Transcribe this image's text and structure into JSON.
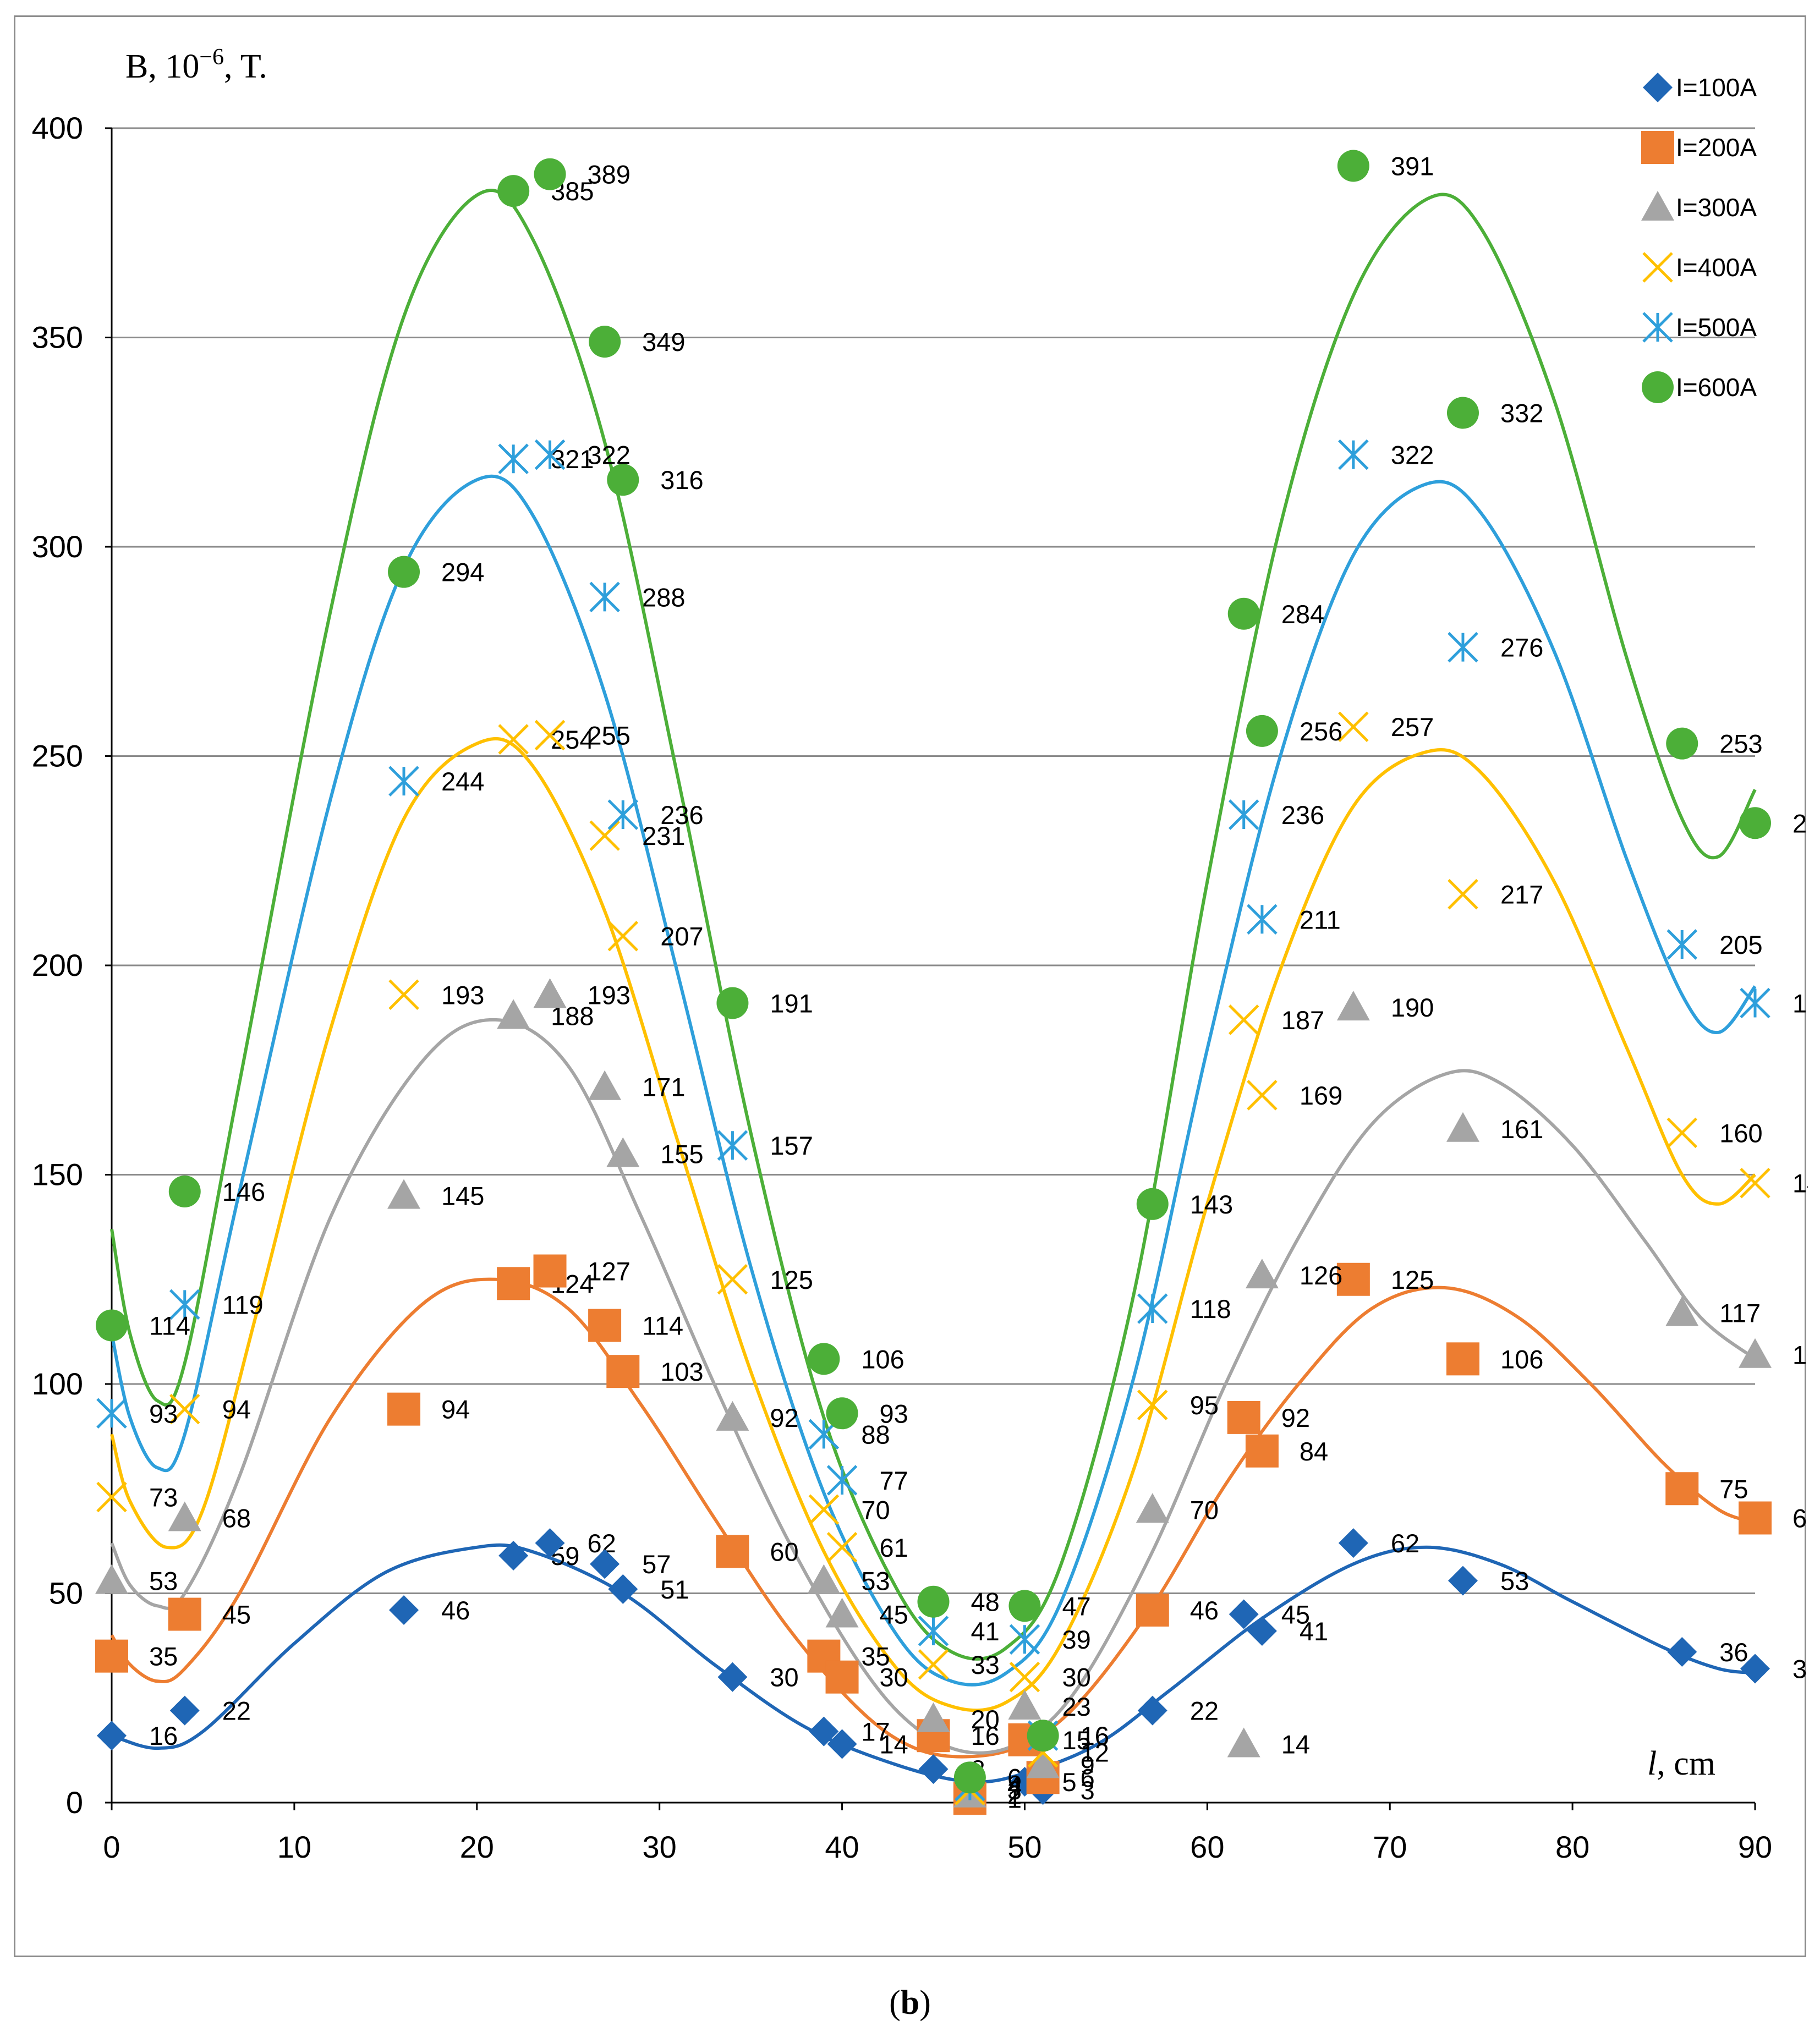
{
  "caption": {
    "open": "(",
    "letter": "b",
    "close": ")"
  },
  "chart_data": {
    "type": "scatter",
    "title": "",
    "xlabel": "l, cm",
    "ylabel": "B, 10⁻⁶, T.",
    "xlim": [
      0,
      90
    ],
    "ylim": [
      0,
      400
    ],
    "x_ticks": [
      0,
      10,
      20,
      30,
      40,
      50,
      60,
      70,
      80,
      90
    ],
    "y_ticks": [
      0,
      50,
      100,
      150,
      200,
      250,
      300,
      350,
      400
    ],
    "grid": "horizontal",
    "legend_position": "top-right",
    "trendlines": "smooth fitted curve per series",
    "series": [
      {
        "name": "I=100A",
        "color": "#1f66b5",
        "marker": "diamond",
        "x": [
          0,
          4,
          16,
          22,
          24,
          27,
          28,
          34,
          39,
          40,
          45,
          47,
          50,
          51,
          57,
          62,
          63,
          68,
          74,
          86,
          90
        ],
        "y": [
          16,
          22,
          46,
          59,
          62,
          57,
          51,
          30,
          17,
          14,
          8,
          2,
          5,
          3,
          22,
          45,
          41,
          62,
          53,
          36,
          32
        ],
        "curve": [
          [
            0,
            16
          ],
          [
            2.5,
            13
          ],
          [
            5,
            17
          ],
          [
            10,
            38
          ],
          [
            15,
            55
          ],
          [
            20,
            61
          ],
          [
            23,
            60
          ],
          [
            28,
            50
          ],
          [
            33,
            33
          ],
          [
            38,
            18
          ],
          [
            43,
            9
          ],
          [
            47,
            5
          ],
          [
            50,
            7
          ],
          [
            54,
            14
          ],
          [
            58,
            27
          ],
          [
            63,
            44
          ],
          [
            68,
            57
          ],
          [
            72,
            61
          ],
          [
            76,
            57
          ],
          [
            80,
            48
          ],
          [
            85,
            37
          ],
          [
            88,
            32
          ],
          [
            90,
            31
          ]
        ]
      },
      {
        "name": "I=200A",
        "color": "#ed7d31",
        "marker": "square",
        "x": [
          0,
          4,
          16,
          22,
          24,
          27,
          28,
          34,
          39,
          40,
          45,
          47,
          50,
          51,
          57,
          62,
          63,
          68,
          74,
          86,
          90
        ],
        "y": [
          35,
          45,
          94,
          124,
          127,
          114,
          103,
          60,
          35,
          30,
          16,
          1,
          15,
          6,
          46,
          92,
          84,
          125,
          106,
          75,
          68
        ],
        "curve": [
          [
            0,
            40
          ],
          [
            1,
            33
          ],
          [
            2.5,
            29
          ],
          [
            4,
            32
          ],
          [
            7,
            50
          ],
          [
            12,
            92
          ],
          [
            17,
            119
          ],
          [
            21,
            125
          ],
          [
            25,
            118
          ],
          [
            29,
            95
          ],
          [
            33,
            68
          ],
          [
            37,
            42
          ],
          [
            41,
            22
          ],
          [
            44,
            13
          ],
          [
            47,
            11
          ],
          [
            50,
            14
          ],
          [
            53,
            24
          ],
          [
            57,
            47
          ],
          [
            61,
            76
          ],
          [
            65,
            100
          ],
          [
            69,
            118
          ],
          [
            73,
            123
          ],
          [
            77,
            116
          ],
          [
            81,
            100
          ],
          [
            85,
            81
          ],
          [
            88,
            70
          ],
          [
            90,
            67
          ]
        ]
      },
      {
        "name": "I=300A",
        "color": "#a5a5a5",
        "marker": "triangle",
        "x": [
          0,
          4,
          16,
          22,
          24,
          27,
          28,
          34,
          39,
          40,
          45,
          47,
          50,
          51,
          57,
          62,
          63,
          68,
          74,
          86,
          90
        ],
        "y": [
          53,
          68,
          145,
          188,
          193,
          171,
          155,
          92,
          53,
          45,
          20,
          2,
          23,
          9,
          70,
          14,
          126,
          190,
          161,
          117,
          107
        ],
        "curve": [
          [
            0,
            62
          ],
          [
            1,
            52
          ],
          [
            2.5,
            47
          ],
          [
            4,
            50
          ],
          [
            7,
            78
          ],
          [
            12,
            140
          ],
          [
            17,
            177
          ],
          [
            21,
            187
          ],
          [
            25,
            176
          ],
          [
            29,
            140
          ],
          [
            33,
            100
          ],
          [
            37,
            63
          ],
          [
            41,
            33
          ],
          [
            44,
            18
          ],
          [
            47,
            12
          ],
          [
            50,
            15
          ],
          [
            53,
            28
          ],
          [
            57,
            60
          ],
          [
            61,
            100
          ],
          [
            65,
            135
          ],
          [
            69,
            162
          ],
          [
            73,
            174
          ],
          [
            76,
            172
          ],
          [
            80,
            157
          ],
          [
            84,
            134
          ],
          [
            87,
            116
          ],
          [
            90,
            106
          ]
        ]
      },
      {
        "name": "I=400A",
        "color": "#ffc000",
        "marker": "x",
        "x": [
          0,
          4,
          16,
          22,
          24,
          27,
          28,
          34,
          39,
          40,
          45,
          47,
          50,
          51,
          57,
          62,
          63,
          68,
          74,
          86,
          90
        ],
        "y": [
          73,
          94,
          193,
          254,
          255,
          231,
          207,
          125,
          70,
          61,
          33,
          3,
          30,
          12,
          95,
          187,
          169,
          257,
          217,
          160,
          148
        ],
        "curve": [
          [
            0,
            88
          ],
          [
            1,
            72
          ],
          [
            3,
            61
          ],
          [
            5,
            70
          ],
          [
            8,
            118
          ],
          [
            12,
            185
          ],
          [
            16,
            235
          ],
          [
            20,
            253
          ],
          [
            23,
            248
          ],
          [
            27,
            213
          ],
          [
            31,
            158
          ],
          [
            35,
            103
          ],
          [
            39,
            60
          ],
          [
            43,
            32
          ],
          [
            46,
            23
          ],
          [
            49,
            24
          ],
          [
            52,
            38
          ],
          [
            56,
            80
          ],
          [
            60,
            143
          ],
          [
            64,
            199
          ],
          [
            68,
            238
          ],
          [
            72,
            251
          ],
          [
            75,
            246
          ],
          [
            79,
            220
          ],
          [
            83,
            180
          ],
          [
            86,
            150
          ],
          [
            88,
            143
          ],
          [
            90,
            150
          ]
        ]
      },
      {
        "name": "I=500A",
        "color": "#2e9fdb",
        "marker": "star",
        "x": [
          0,
          4,
          16,
          22,
          24,
          27,
          28,
          34,
          39,
          40,
          45,
          47,
          50,
          51,
          57,
          62,
          63,
          68,
          74,
          86,
          90
        ],
        "y": [
          93,
          119,
          244,
          321,
          322,
          288,
          236,
          157,
          88,
          77,
          41,
          4,
          39,
          16,
          118,
          236,
          211,
          322,
          276,
          205,
          191
        ],
        "curve": [
          [
            0,
            112
          ],
          [
            1,
            92
          ],
          [
            2.5,
            80
          ],
          [
            4,
            88
          ],
          [
            7,
            146
          ],
          [
            12,
            240
          ],
          [
            16,
            295
          ],
          [
            20,
            316
          ],
          [
            23,
            308
          ],
          [
            27,
            265
          ],
          [
            31,
            198
          ],
          [
            35,
            128
          ],
          [
            39,
            74
          ],
          [
            43,
            40
          ],
          [
            46,
            29
          ],
          [
            49,
            31
          ],
          [
            52,
            48
          ],
          [
            56,
            102
          ],
          [
            60,
            180
          ],
          [
            64,
            250
          ],
          [
            68,
            298
          ],
          [
            72,
            315
          ],
          [
            75,
            308
          ],
          [
            79,
            275
          ],
          [
            83,
            225
          ],
          [
            86,
            193
          ],
          [
            88,
            184
          ],
          [
            90,
            195
          ]
        ]
      },
      {
        "name": "I=600A",
        "color": "#4caf38",
        "marker": "circle",
        "x": [
          0,
          4,
          16,
          22,
          24,
          27,
          28,
          34,
          39,
          40,
          45,
          47,
          50,
          51,
          57,
          62,
          63,
          68,
          74,
          86,
          90
        ],
        "y": [
          114,
          146,
          294,
          385,
          389,
          349,
          316,
          191,
          106,
          93,
          48,
          6,
          47,
          16,
          143,
          284,
          256,
          391,
          332,
          253,
          234
        ],
        "curve": [
          [
            0,
            137
          ],
          [
            1,
            112
          ],
          [
            2.5,
            96
          ],
          [
            4,
            105
          ],
          [
            7,
            172
          ],
          [
            12,
            285
          ],
          [
            16,
            355
          ],
          [
            20,
            384
          ],
          [
            23,
            374
          ],
          [
            27,
            325
          ],
          [
            31,
            245
          ],
          [
            35,
            160
          ],
          [
            39,
            92
          ],
          [
            43,
            51
          ],
          [
            46,
            36
          ],
          [
            49,
            37
          ],
          [
            52,
            57
          ],
          [
            56,
            122
          ],
          [
            60,
            220
          ],
          [
            64,
            305
          ],
          [
            68,
            360
          ],
          [
            72,
            383
          ],
          [
            75,
            376
          ],
          [
            79,
            335
          ],
          [
            83,
            273
          ],
          [
            86,
            235
          ],
          [
            88,
            226
          ],
          [
            90,
            242
          ]
        ]
      }
    ]
  }
}
